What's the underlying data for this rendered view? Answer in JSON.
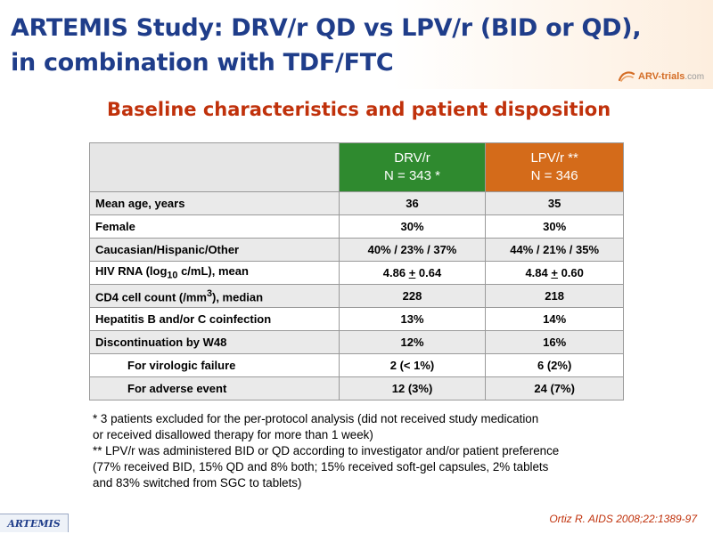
{
  "title": {
    "line1": "ARTEMIS Study: DRV/r QD vs LPV/r (BID or QD),",
    "line2": "in combination with TDF/FTC"
  },
  "logo": {
    "name": "ARV-trials",
    "domain": ".com",
    "icon": "arv-trials-logo-icon"
  },
  "subtitle": "Baseline characteristics and patient disposition",
  "table": {
    "columns": [
      {
        "line1": "DRV/r",
        "line2": "N = 343 *",
        "color": "#2f8a2f"
      },
      {
        "line1": "LPV/r **",
        "line2": "N = 346",
        "color": "#d46b1a"
      }
    ],
    "rows": [
      {
        "label": "Mean age, years",
        "drv": "36",
        "lpv": "35"
      },
      {
        "label": "Female",
        "drv": "30%",
        "lpv": "30%"
      },
      {
        "label": "Caucasian/Hispanic/Other",
        "drv": "40% / 23% / 37%",
        "lpv": "44% / 21% / 35%"
      },
      {
        "label_pre": "HIV RNA (log",
        "label_sub": "10",
        "label_post": " c/mL), mean",
        "drv_a": "4.86 ",
        "drv_pm": "+",
        "drv_b": " 0.64",
        "lpv_a": "4.84 ",
        "lpv_pm": "+",
        "lpv_b": " 0.60"
      },
      {
        "label_pre": "CD4 cell count (/mm",
        "label_sup": "3",
        "label_post": "), median",
        "drv": "228",
        "lpv": "218"
      },
      {
        "label": "Hepatitis B and/or C coinfection",
        "drv": "13%",
        "lpv": "14%"
      },
      {
        "label": "Discontinuation by W48",
        "drv": "12%",
        "lpv": "16%"
      },
      {
        "label": "For virologic failure",
        "drv": "2 (< 1%)",
        "lpv": "6 (2%)"
      },
      {
        "label": "For adverse event",
        "drv": "12 (3%)",
        "lpv": "24 (7%)"
      }
    ]
  },
  "notes": [
    "* 3 patients excluded for the per-protocol analysis (did not received study medication",
    "or received disallowed therapy for more than 1 week)",
    "** LPV/r was administered BID or QD according to investigator and/or patient preference",
    "(77% received BID, 15% QD and 8% both; 15% received soft-gel capsules, 2% tablets",
    "and 83% switched from SGC to tablets)"
  ],
  "footer": {
    "badge": "ARTEMIS",
    "reference": "Ortiz R. AIDS 2008;22:1389-97"
  },
  "colors": {
    "title": "#1f3d8a",
    "subtitle": "#c0310b",
    "drv_header": "#2f8a2f",
    "lpv_header": "#d46b1a",
    "row_shade": "#eaeaea"
  }
}
